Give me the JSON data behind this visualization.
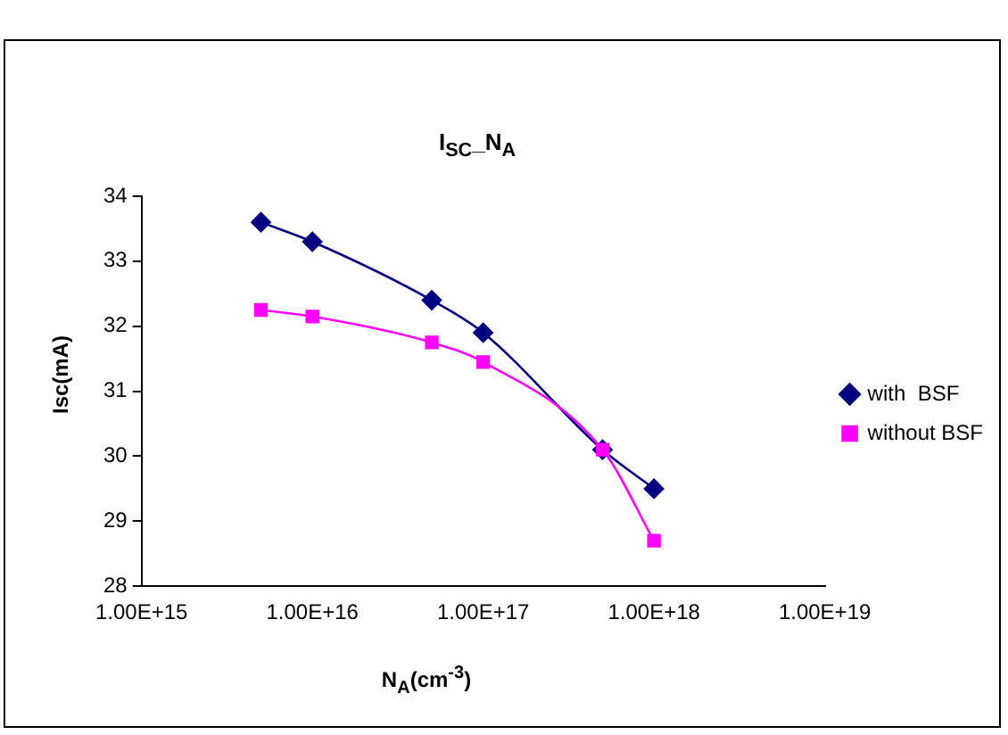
{
  "chart_data": {
    "type": "line",
    "title": "I$_{SC}$_N$_{A}$",
    "xlabel": "N$_{A}$(cm$^{-3}$)",
    "ylabel": "Isc(mA)",
    "x": [
      5000000000000000.0,
      1e+16,
      5e+16,
      1e+17,
      5e+17,
      1e+18
    ],
    "series": [
      {
        "name": "with  BSF",
        "color": "#000080",
        "marker": "diamond",
        "values": [
          33.6,
          33.3,
          32.4,
          31.9,
          30.1,
          29.5
        ]
      },
      {
        "name": "without BSF",
        "color": "#ff00ff",
        "marker": "square",
        "values": [
          32.25,
          32.15,
          31.75,
          31.45,
          30.1,
          28.7
        ]
      }
    ],
    "log": "x",
    "xlim": [
      1000000000000000.0,
      1e+19
    ],
    "xticks": [
      {
        "value": 1000000000000000.0,
        "label": "1.00E+15"
      },
      {
        "value": 1e+16,
        "label": "1.00E+16"
      },
      {
        "value": 1e+17,
        "label": "1.00E+17"
      },
      {
        "value": 1e+18,
        "label": "1.00E+18"
      },
      {
        "value": 1e+19,
        "label": "1.00E+19"
      }
    ],
    "ylim": [
      28,
      34
    ],
    "yticks": [
      28,
      29,
      30,
      31,
      32,
      33,
      34
    ],
    "grid": false,
    "legend": "right",
    "line_style": "solid"
  }
}
